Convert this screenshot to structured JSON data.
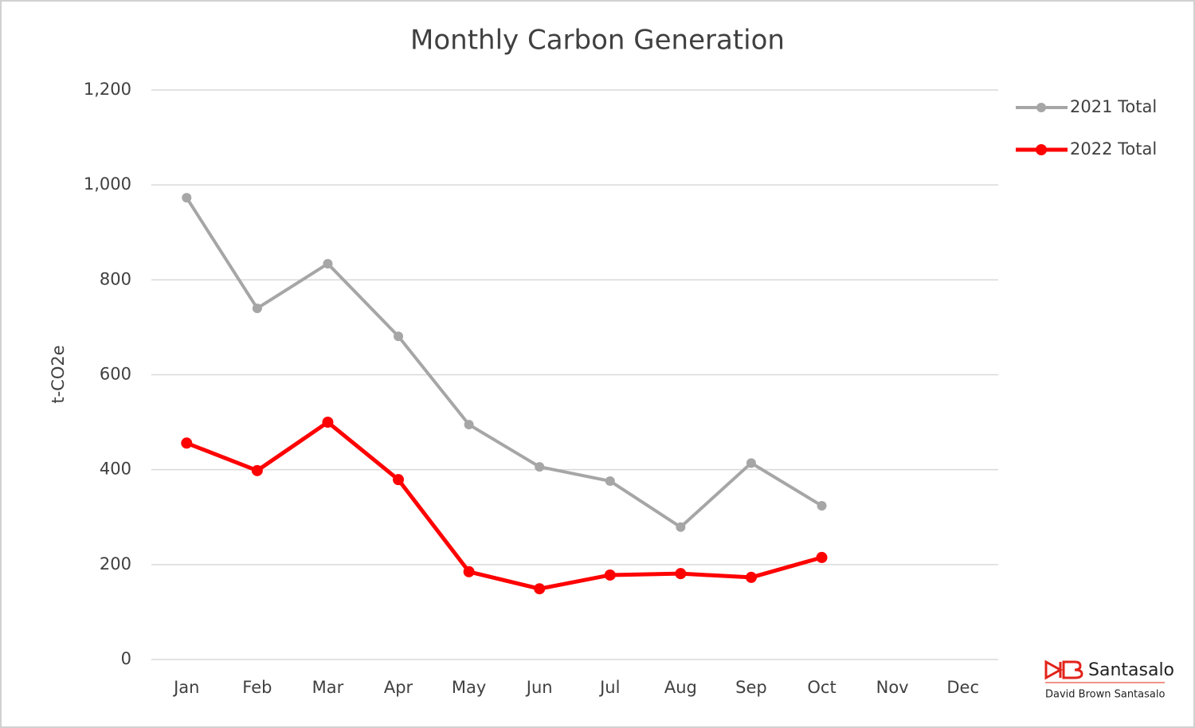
{
  "chart_data": {
    "type": "line",
    "title": "Monthly Carbon Generation",
    "y_label": "t-CO2e",
    "categories": [
      "Jan",
      "Feb",
      "Mar",
      "Apr",
      "May",
      "Jun",
      "Jul",
      "Aug",
      "Sep",
      "Oct",
      "Nov",
      "Dec"
    ],
    "series": [
      {
        "name": "2021 Total",
        "color": "#a6a6a6",
        "values": [
          973,
          740,
          834,
          681,
          495,
          406,
          376,
          279,
          414,
          324,
          null,
          null
        ]
      },
      {
        "name": "2022 Total",
        "color": "#ff0000",
        "values": [
          456,
          398,
          500,
          379,
          185,
          149,
          178,
          181,
          173,
          215,
          null,
          null
        ]
      }
    ],
    "ylim": [
      0,
      1200
    ],
    "yticks": [
      0,
      200,
      400,
      600,
      800,
      {
        "value": 1000,
        "label": "1,000"
      },
      {
        "value": 1200,
        "label": "1,200"
      }
    ],
    "grid": true,
    "legend": "right"
  },
  "logo": {
    "name": "Santasalo",
    "subtitle": "David Brown Santasalo"
  }
}
